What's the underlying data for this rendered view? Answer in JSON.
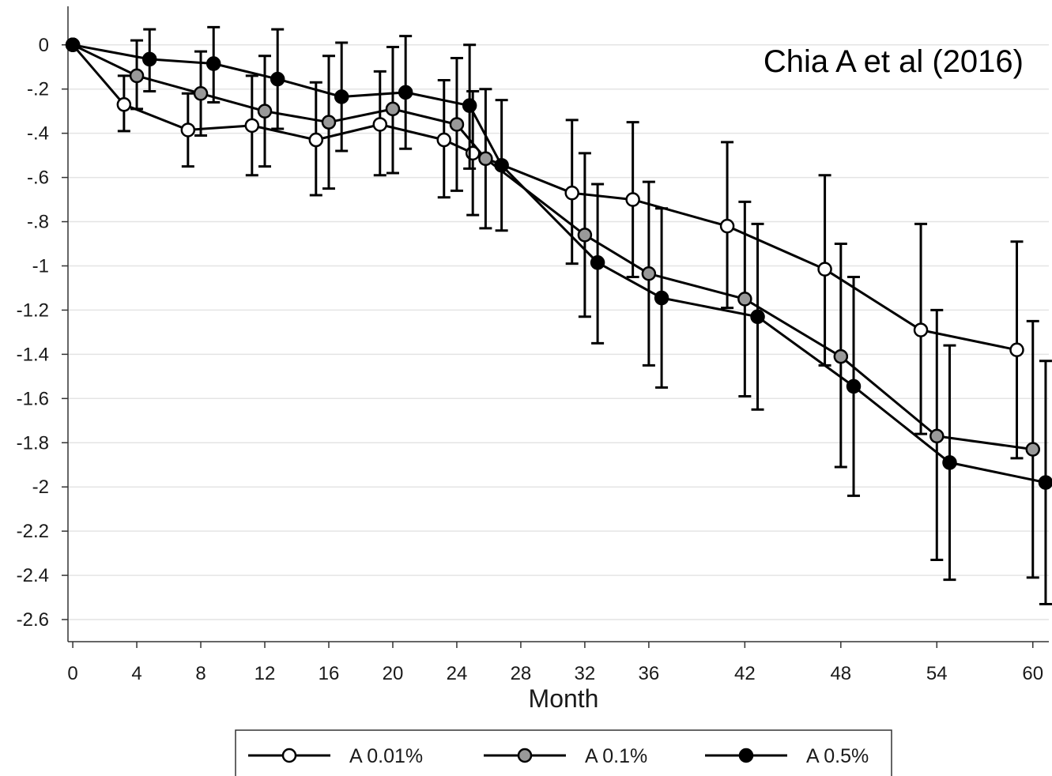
{
  "chart_data": {
    "type": "line",
    "annotation": "Chia A et al (2016)",
    "xlabel": "Month",
    "ylabel": "",
    "x_ticks": [
      0,
      4,
      8,
      12,
      16,
      20,
      24,
      28,
      32,
      36,
      42,
      48,
      54,
      60
    ],
    "y_ticks": [
      0,
      -0.2,
      -0.4,
      -0.6,
      -0.8,
      -1,
      -1.2,
      -1.4,
      -1.6,
      -1.8,
      -2,
      -2.2,
      -2.4,
      -2.6
    ],
    "y_tick_labels": [
      "0",
      "-.2",
      "-.4",
      "-.6",
      "-.8",
      "-1",
      "-1.2",
      "-1.4",
      "-1.6",
      "-1.8",
      "-2",
      "-2.2",
      "-2.4",
      "-2.6"
    ],
    "xlim": [
      -0.3,
      61
    ],
    "ylim": [
      -2.7,
      0.16
    ],
    "grid": true,
    "legend_position": "bottom",
    "series": [
      {
        "name": "A 0.01%",
        "marker_fill": "#ffffff",
        "points": [
          {
            "x": 0.0,
            "y": 0.0
          },
          {
            "x": 3.2,
            "y": -0.27,
            "lo": -0.39,
            "hi": -0.14
          },
          {
            "x": 7.2,
            "y": -0.385,
            "lo": -0.55,
            "hi": -0.22
          },
          {
            "x": 11.2,
            "y": -0.365,
            "lo": -0.59,
            "hi": -0.14
          },
          {
            "x": 15.2,
            "y": -0.43,
            "lo": -0.68,
            "hi": -0.17
          },
          {
            "x": 19.2,
            "y": -0.36,
            "lo": -0.59,
            "hi": -0.12
          },
          {
            "x": 23.2,
            "y": -0.43,
            "lo": -0.69,
            "hi": -0.16
          },
          {
            "x": 25.0,
            "y": -0.49,
            "lo": -0.77,
            "hi": -0.21
          },
          {
            "x": 31.2,
            "y": -0.67,
            "lo": -0.99,
            "hi": -0.34
          },
          {
            "x": 35.0,
            "y": -0.7,
            "lo": -1.05,
            "hi": -0.35
          },
          {
            "x": 40.9,
            "y": -0.82,
            "lo": -1.19,
            "hi": -0.44
          },
          {
            "x": 47.0,
            "y": -1.015,
            "lo": -1.45,
            "hi": -0.59
          },
          {
            "x": 53.0,
            "y": -1.29,
            "lo": -1.76,
            "hi": -0.81
          },
          {
            "x": 59.0,
            "y": -1.38,
            "lo": -1.87,
            "hi": -0.89
          }
        ]
      },
      {
        "name": "A 0.1%",
        "marker_fill": "#999999",
        "points": [
          {
            "x": 0.0,
            "y": 0.0
          },
          {
            "x": 4.0,
            "y": -0.14,
            "lo": -0.29,
            "hi": 0.02
          },
          {
            "x": 8.0,
            "y": -0.22,
            "lo": -0.41,
            "hi": -0.03
          },
          {
            "x": 12.0,
            "y": -0.3,
            "lo": -0.55,
            "hi": -0.05
          },
          {
            "x": 16.0,
            "y": -0.35,
            "lo": -0.65,
            "hi": -0.05
          },
          {
            "x": 20.0,
            "y": -0.29,
            "lo": -0.58,
            "hi": -0.01
          },
          {
            "x": 24.0,
            "y": -0.36,
            "lo": -0.66,
            "hi": -0.06
          },
          {
            "x": 25.8,
            "y": -0.515,
            "lo": -0.83,
            "hi": -0.2
          },
          {
            "x": 32.0,
            "y": -0.86,
            "lo": -1.23,
            "hi": -0.49
          },
          {
            "x": 36.0,
            "y": -1.035,
            "lo": -1.45,
            "hi": -0.62
          },
          {
            "x": 42.0,
            "y": -1.15,
            "lo": -1.59,
            "hi": -0.71
          },
          {
            "x": 48.0,
            "y": -1.41,
            "lo": -1.91,
            "hi": -0.9
          },
          {
            "x": 54.0,
            "y": -1.77,
            "lo": -2.33,
            "hi": -1.2
          },
          {
            "x": 60.0,
            "y": -1.83,
            "lo": -2.41,
            "hi": -1.25
          }
        ]
      },
      {
        "name": "A 0.5%",
        "marker_fill": "#000000",
        "points": [
          {
            "x": 0.0,
            "y": 0.0
          },
          {
            "x": 4.8,
            "y": -0.065,
            "lo": -0.21,
            "hi": 0.07
          },
          {
            "x": 8.8,
            "y": -0.085,
            "lo": -0.26,
            "hi": 0.08
          },
          {
            "x": 12.8,
            "y": -0.155,
            "lo": -0.38,
            "hi": 0.07
          },
          {
            "x": 16.8,
            "y": -0.235,
            "lo": -0.48,
            "hi": 0.01
          },
          {
            "x": 20.8,
            "y": -0.215,
            "lo": -0.47,
            "hi": 0.04
          },
          {
            "x": 24.8,
            "y": -0.275,
            "lo": -0.56,
            "hi": 0.0
          },
          {
            "x": 26.8,
            "y": -0.545,
            "lo": -0.84,
            "hi": -0.25
          },
          {
            "x": 32.8,
            "y": -0.985,
            "lo": -1.35,
            "hi": -0.63
          },
          {
            "x": 36.8,
            "y": -1.145,
            "lo": -1.55,
            "hi": -0.74
          },
          {
            "x": 42.8,
            "y": -1.23,
            "lo": -1.65,
            "hi": -0.81
          },
          {
            "x": 48.8,
            "y": -1.545,
            "lo": -2.04,
            "hi": -1.05
          },
          {
            "x": 54.8,
            "y": -1.89,
            "lo": -2.42,
            "hi": -1.36
          },
          {
            "x": 60.8,
            "y": -1.98,
            "lo": -2.53,
            "hi": -1.43
          }
        ]
      }
    ]
  }
}
